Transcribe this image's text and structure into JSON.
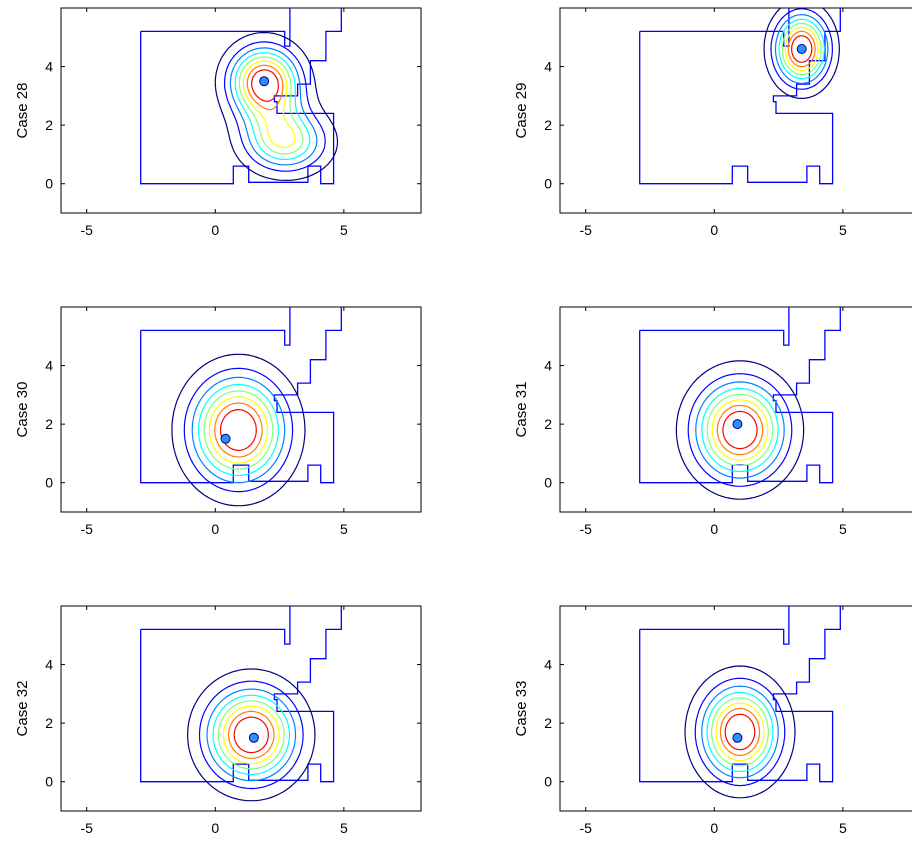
{
  "figure": {
    "floor_color": "#0000ff",
    "contour_colors": [
      "#00007f",
      "#0000ff",
      "#007fff",
      "#00ffff",
      "#7fff7f",
      "#ffff00",
      "#ff7f00",
      "#ff0000"
    ],
    "source_color": "#2f8fff"
  },
  "chart_data": [
    {
      "type": "contour",
      "ylabel": "Case 28",
      "xlim": [
        -6,
        8
      ],
      "ylim": [
        -1,
        6
      ],
      "xticks": [
        -5,
        0,
        5
      ],
      "yticks": [
        0,
        2,
        4
      ],
      "xticklabels": [
        "-5",
        "0",
        "5"
      ],
      "yticklabels": [
        "0",
        "2",
        "4"
      ],
      "grid": false,
      "source": [
        1.9,
        3.5
      ],
      "peaks": [
        {
          "x": 1.9,
          "y": 3.5,
          "sx": 0.85,
          "sy": 0.75,
          "a": 1.0
        },
        {
          "x": 2.8,
          "y": 1.4,
          "sx": 1.0,
          "sy": 0.65,
          "a": 0.55
        },
        {
          "x": 2.3,
          "y": 2.2,
          "sx": 0.9,
          "sy": 0.8,
          "a": 0.3
        }
      ]
    },
    {
      "type": "contour",
      "ylabel": "Case 29",
      "xlim": [
        -6,
        8
      ],
      "ylim": [
        -1,
        6
      ],
      "xticks": [
        -5,
        0,
        5
      ],
      "yticks": [
        0,
        2,
        4
      ],
      "xticklabels": [
        "-5",
        "0",
        "5"
      ],
      "yticklabels": [
        "0",
        "2",
        "4"
      ],
      "grid": false,
      "source": [
        3.4,
        4.6
      ],
      "peaks": [
        {
          "x": 3.4,
          "y": 4.6,
          "sx": 0.65,
          "sy": 0.75,
          "a": 1.0
        }
      ]
    },
    {
      "type": "contour",
      "ylabel": "Case 30",
      "xlim": [
        -6,
        8
      ],
      "ylim": [
        -1,
        6
      ],
      "xticks": [
        -5,
        0,
        5
      ],
      "yticks": [
        0,
        2,
        4
      ],
      "xticklabels": [
        "-5",
        "0",
        "5"
      ],
      "yticklabels": [
        "0",
        "2",
        "4"
      ],
      "grid": false,
      "source": [
        0.4,
        1.5
      ],
      "peaks": [
        {
          "x": 0.9,
          "y": 1.8,
          "sx": 1.15,
          "sy": 1.15,
          "a": 1.0
        }
      ]
    },
    {
      "type": "contour",
      "ylabel": "Case 31",
      "xlim": [
        -6,
        8
      ],
      "ylim": [
        -1,
        6
      ],
      "xticks": [
        -5,
        0,
        5
      ],
      "yticks": [
        0,
        2,
        4
      ],
      "xticklabels": [
        "-5",
        "0",
        "5"
      ],
      "yticklabels": [
        "0",
        "2",
        "4"
      ],
      "grid": false,
      "source": [
        0.9,
        2.0
      ],
      "peaks": [
        {
          "x": 1.0,
          "y": 1.8,
          "sx": 1.1,
          "sy": 1.05,
          "a": 1.0
        }
      ]
    },
    {
      "type": "contour",
      "ylabel": "Case 32",
      "xlim": [
        -6,
        8
      ],
      "ylim": [
        -1,
        6
      ],
      "xticks": [
        -5,
        0,
        5
      ],
      "yticks": [
        0,
        2,
        4
      ],
      "xticklabels": [
        "-5",
        "0",
        "5"
      ],
      "yticklabels": [
        "0",
        "2",
        "4"
      ],
      "grid": false,
      "source": [
        1.5,
        1.5
      ],
      "peaks": [
        {
          "x": 1.4,
          "y": 1.6,
          "sx": 1.1,
          "sy": 1.0,
          "a": 1.0
        }
      ]
    },
    {
      "type": "contour",
      "ylabel": "Case 33",
      "xlim": [
        -6,
        8
      ],
      "ylim": [
        -1,
        6
      ],
      "xticks": [
        -5,
        0,
        5
      ],
      "yticks": [
        0,
        2,
        4
      ],
      "xticklabels": [
        "-5",
        "0",
        "5"
      ],
      "yticklabels": [
        "0",
        "2",
        "4"
      ],
      "grid": false,
      "source": [
        0.9,
        1.5
      ],
      "peaks": [
        {
          "x": 1.0,
          "y": 1.7,
          "sx": 0.95,
          "sy": 1.0,
          "a": 1.0
        }
      ]
    }
  ]
}
